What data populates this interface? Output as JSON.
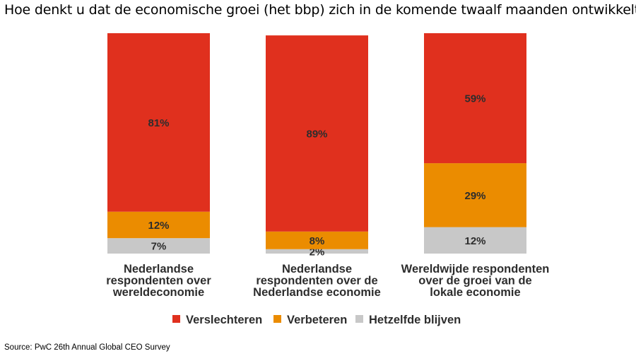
{
  "chart_data": {
    "type": "bar",
    "stacked": true,
    "title": "Hoe denkt u dat de economische groei (het bbp) zich in de komende twaalf maanden ontwikkelt?",
    "categories": [
      [
        "Nederlandse",
        "respondenten over",
        "wereldeconomie"
      ],
      [
        "Nederlandse",
        "respondenten over de",
        "Nederlandse economie"
      ],
      [
        "Wereldwijde respondenten",
        "over de groei van de",
        "lokale economie"
      ]
    ],
    "series": [
      {
        "name": "Verslechteren",
        "color": "#e0301e",
        "values": [
          81,
          89,
          59
        ]
      },
      {
        "name": "Verbeteren",
        "color": "#eb8c00",
        "values": [
          12,
          8,
          29
        ]
      },
      {
        "name": "Hetzelfde blijven",
        "color": "#c8c8c8",
        "values": [
          7,
          2,
          12
        ]
      }
    ],
    "value_suffix": "%",
    "ylim": [
      0,
      100
    ],
    "grid": false,
    "legend_position": "bottom"
  },
  "source": "Source: PwC 26th Annual Global CEO Survey"
}
